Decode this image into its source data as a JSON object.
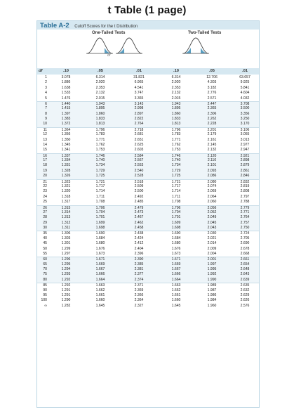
{
  "page_title": "t Table (1 page)",
  "table_label": "Table A-2",
  "table_description": "Cutoff Scores for the t Distribution",
  "one_tailed_label": "One-Tailed Tests",
  "two_tailed_label": "Two-Tailed Tests",
  "or_text": "or",
  "headers": [
    "df",
    ".10",
    ".05",
    ".01",
    ".10",
    ".05",
    ".01"
  ],
  "rows": [
    [
      "1",
      "3.078",
      "6.314",
      "31.821",
      "6.314",
      "12.706",
      "63.657"
    ],
    [
      "2",
      "1.886",
      "2.920",
      "6.965",
      "2.920",
      "4.303",
      "9.925"
    ],
    [
      "3",
      "1.638",
      "2.353",
      "4.541",
      "2.353",
      "3.182",
      "5.841"
    ],
    [
      "4",
      "1.533",
      "2.132",
      "3.747",
      "2.132",
      "2.776",
      "4.604"
    ],
    [
      "5",
      "1.476",
      "2.015",
      "3.365",
      "2.015",
      "2.571",
      "4.032"
    ],
    [
      "6",
      "1.440",
      "1.943",
      "3.143",
      "1.943",
      "2.447",
      "3.708"
    ],
    [
      "7",
      "1.415",
      "1.895",
      "2.998",
      "1.895",
      "2.365",
      "3.500"
    ],
    [
      "8",
      "1.397",
      "1.860",
      "2.897",
      "1.860",
      "2.306",
      "3.356"
    ],
    [
      "9",
      "1.383",
      "1.833",
      "2.822",
      "1.833",
      "2.262",
      "3.250"
    ],
    [
      "10",
      "1.372",
      "1.813",
      "2.764",
      "1.813",
      "2.228",
      "3.170"
    ],
    [
      "11",
      "1.364",
      "1.796",
      "2.718",
      "1.796",
      "2.201",
      "3.106"
    ],
    [
      "12",
      "1.356",
      "1.783",
      "2.681",
      "1.783",
      "2.179",
      "3.055"
    ],
    [
      "13",
      "1.350",
      "1.771",
      "2.651",
      "1.771",
      "2.161",
      "3.013"
    ],
    [
      "14",
      "1.345",
      "1.762",
      "2.625",
      "1.762",
      "2.145",
      "2.977"
    ],
    [
      "15",
      "1.341",
      "1.753",
      "2.603",
      "1.753",
      "2.132",
      "2.947"
    ],
    [
      "16",
      "1.337",
      "1.746",
      "2.584",
      "1.746",
      "2.120",
      "2.921"
    ],
    [
      "17",
      "1.334",
      "1.740",
      "2.567",
      "1.740",
      "2.110",
      "2.898"
    ],
    [
      "18",
      "1.331",
      "1.734",
      "2.553",
      "1.734",
      "2.101",
      "2.879"
    ],
    [
      "19",
      "1.328",
      "1.729",
      "2.540",
      "1.729",
      "2.093",
      "2.861"
    ],
    [
      "20",
      "1.326",
      "1.725",
      "2.528",
      "1.725",
      "2.086",
      "2.846"
    ],
    [
      "21",
      "1.323",
      "1.721",
      "2.518",
      "1.721",
      "2.080",
      "2.832"
    ],
    [
      "22",
      "1.321",
      "1.717",
      "2.509",
      "1.717",
      "2.074",
      "2.819"
    ],
    [
      "23",
      "1.320",
      "1.714",
      "2.500",
      "1.714",
      "2.069",
      "2.808"
    ],
    [
      "24",
      "1.318",
      "1.711",
      "2.492",
      "1.711",
      "2.064",
      "2.797"
    ],
    [
      "25",
      "1.317",
      "1.708",
      "2.485",
      "1.708",
      "2.060",
      "2.788"
    ],
    [
      "26",
      "1.315",
      "1.706",
      "2.479",
      "1.706",
      "2.056",
      "2.779"
    ],
    [
      "27",
      "1.314",
      "1.704",
      "2.473",
      "1.704",
      "2.052",
      "2.771"
    ],
    [
      "28",
      "1.313",
      "1.701",
      "2.467",
      "1.701",
      "2.049",
      "2.764"
    ],
    [
      "29",
      "1.312",
      "1.699",
      "2.462",
      "1.699",
      "2.045",
      "2.757"
    ],
    [
      "30",
      "1.311",
      "1.698",
      "2.458",
      "1.698",
      "2.043",
      "2.750"
    ],
    [
      "35",
      "1.306",
      "1.690",
      "2.438",
      "1.690",
      "2.030",
      "2.724"
    ],
    [
      "40",
      "1.303",
      "1.684",
      "2.424",
      "1.684",
      "2.021",
      "2.705"
    ],
    [
      "45",
      "1.301",
      "1.680",
      "2.412",
      "1.680",
      "2.014",
      "2.690"
    ],
    [
      "50",
      "1.299",
      "1.676",
      "2.404",
      "1.676",
      "2.009",
      "2.678"
    ],
    [
      "55",
      "1.297",
      "1.673",
      "2.396",
      "1.673",
      "2.004",
      "2.668"
    ],
    [
      "60",
      "1.296",
      "1.671",
      "2.390",
      "1.671",
      "2.001",
      "2.661"
    ],
    [
      "65",
      "1.295",
      "1.669",
      "2.385",
      "1.669",
      "1.997",
      "2.654"
    ],
    [
      "70",
      "1.294",
      "1.667",
      "2.381",
      "1.667",
      "1.995",
      "2.648"
    ],
    [
      "75",
      "1.293",
      "1.666",
      "2.377",
      "1.666",
      "1.992",
      "2.643"
    ],
    [
      "80",
      "1.292",
      "1.664",
      "2.374",
      "1.664",
      "1.990",
      "2.639"
    ],
    [
      "85",
      "1.292",
      "1.663",
      "2.371",
      "1.663",
      "1.989",
      "2.635"
    ],
    [
      "90",
      "1.291",
      "1.662",
      "2.369",
      "1.662",
      "1.987",
      "2.632"
    ],
    [
      "95",
      "1.291",
      "1.661",
      "2.366",
      "1.661",
      "1.986",
      "2.629"
    ],
    [
      "100",
      "1.290",
      "1.660",
      "2.364",
      "1.660",
      "1.984",
      "2.626"
    ],
    [
      "∞",
      "1.282",
      "1.645",
      "2.327",
      "1.645",
      "1.960",
      "2.576"
    ]
  ],
  "colors": {
    "accent": "#2a6f97",
    "band": "#d6e8f1",
    "stripe": "#eef5f9",
    "curve_fill": "#5a9fc2"
  },
  "icons": [
    "right-tail-distribution-icon",
    "left-tail-distribution-icon",
    "two-tail-distribution-icon"
  ]
}
